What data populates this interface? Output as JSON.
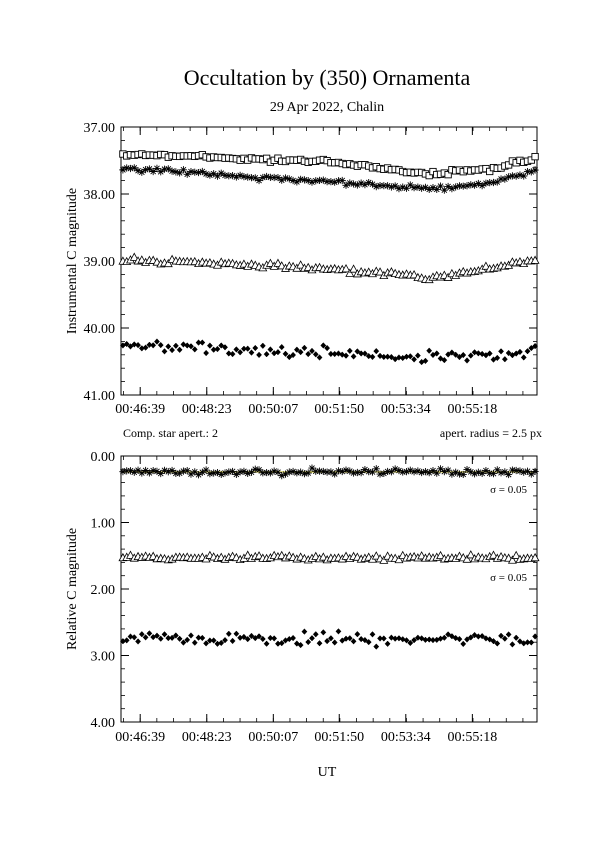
{
  "title": "Occultation by (350) Ornamenta",
  "subtitle": "29 Apr 2022, Chalin",
  "xlabel": "UT",
  "top_panel": {
    "ylabel": "Instrumental C magnitude",
    "left_note": "Comp. star apert.: 2",
    "right_note": "apert. radius = 2.5 px"
  },
  "bottom_panel": {
    "ylabel": "Relative C magnitude",
    "sigma_labels": [
      "σ = 0.05",
      "σ = 0.05"
    ]
  },
  "colors": {
    "axis": "#000000",
    "marker": "#000000",
    "fit_line": "#e8e060"
  },
  "chart_data": [
    {
      "type": "scatter",
      "panel": "top",
      "xticks": [
        "00:46:39",
        "00:48:23",
        "00:50:07",
        "00:51:50",
        "00:53:34",
        "00:55:18"
      ],
      "yticks": [
        "37.00",
        "38.00",
        "39.00",
        "40.00",
        "41.00"
      ],
      "x_range_sec": [
        -30,
        620
      ],
      "ylim": [
        37.0,
        41.0
      ],
      "y_inverted": true,
      "n_points": 110,
      "series": [
        {
          "marker": "open-square",
          "levels": [
            [
              0,
              37.4
            ],
            [
              0.5,
              37.52
            ],
            [
              0.75,
              37.7
            ],
            [
              0.9,
              37.62
            ],
            [
              1,
              37.45
            ]
          ]
        },
        {
          "marker": "asterisk",
          "levels": [
            [
              0,
              37.62
            ],
            [
              0.5,
              37.82
            ],
            [
              0.75,
              37.92
            ],
            [
              0.9,
              37.82
            ],
            [
              1,
              37.65
            ]
          ]
        },
        {
          "marker": "open-triangle",
          "levels": [
            [
              0,
              38.98
            ],
            [
              0.5,
              39.12
            ],
            [
              0.75,
              39.25
            ],
            [
              0.9,
              39.1
            ],
            [
              1,
              38.98
            ]
          ]
        },
        {
          "marker": "filled-diamond",
          "levels": [
            [
              0,
              40.25
            ],
            [
              0.5,
              40.38
            ],
            [
              0.75,
              40.45
            ],
            [
              0.9,
              40.42
            ],
            [
              1,
              40.3
            ]
          ]
        }
      ]
    },
    {
      "type": "scatter",
      "panel": "bottom",
      "xticks": [
        "00:46:39",
        "00:48:23",
        "00:50:07",
        "00:51:50",
        "00:53:34",
        "00:55:18"
      ],
      "yticks": [
        "0.00",
        "1.00",
        "2.00",
        "3.00",
        "4.00"
      ],
      "x_range_sec": [
        -30,
        620
      ],
      "ylim": [
        0.0,
        4.0
      ],
      "y_inverted": true,
      "n_points": 110,
      "series": [
        {
          "marker": "asterisk",
          "levels": [
            [
              0,
              0.24
            ],
            [
              1,
              0.24
            ]
          ],
          "fit": 0.24
        },
        {
          "marker": "open-triangle",
          "levels": [
            [
              0,
              1.53
            ],
            [
              1,
              1.53
            ]
          ]
        },
        {
          "marker": "filled-diamond",
          "levels": [
            [
              0,
              2.75
            ],
            [
              1,
              2.75
            ]
          ]
        }
      ]
    }
  ]
}
